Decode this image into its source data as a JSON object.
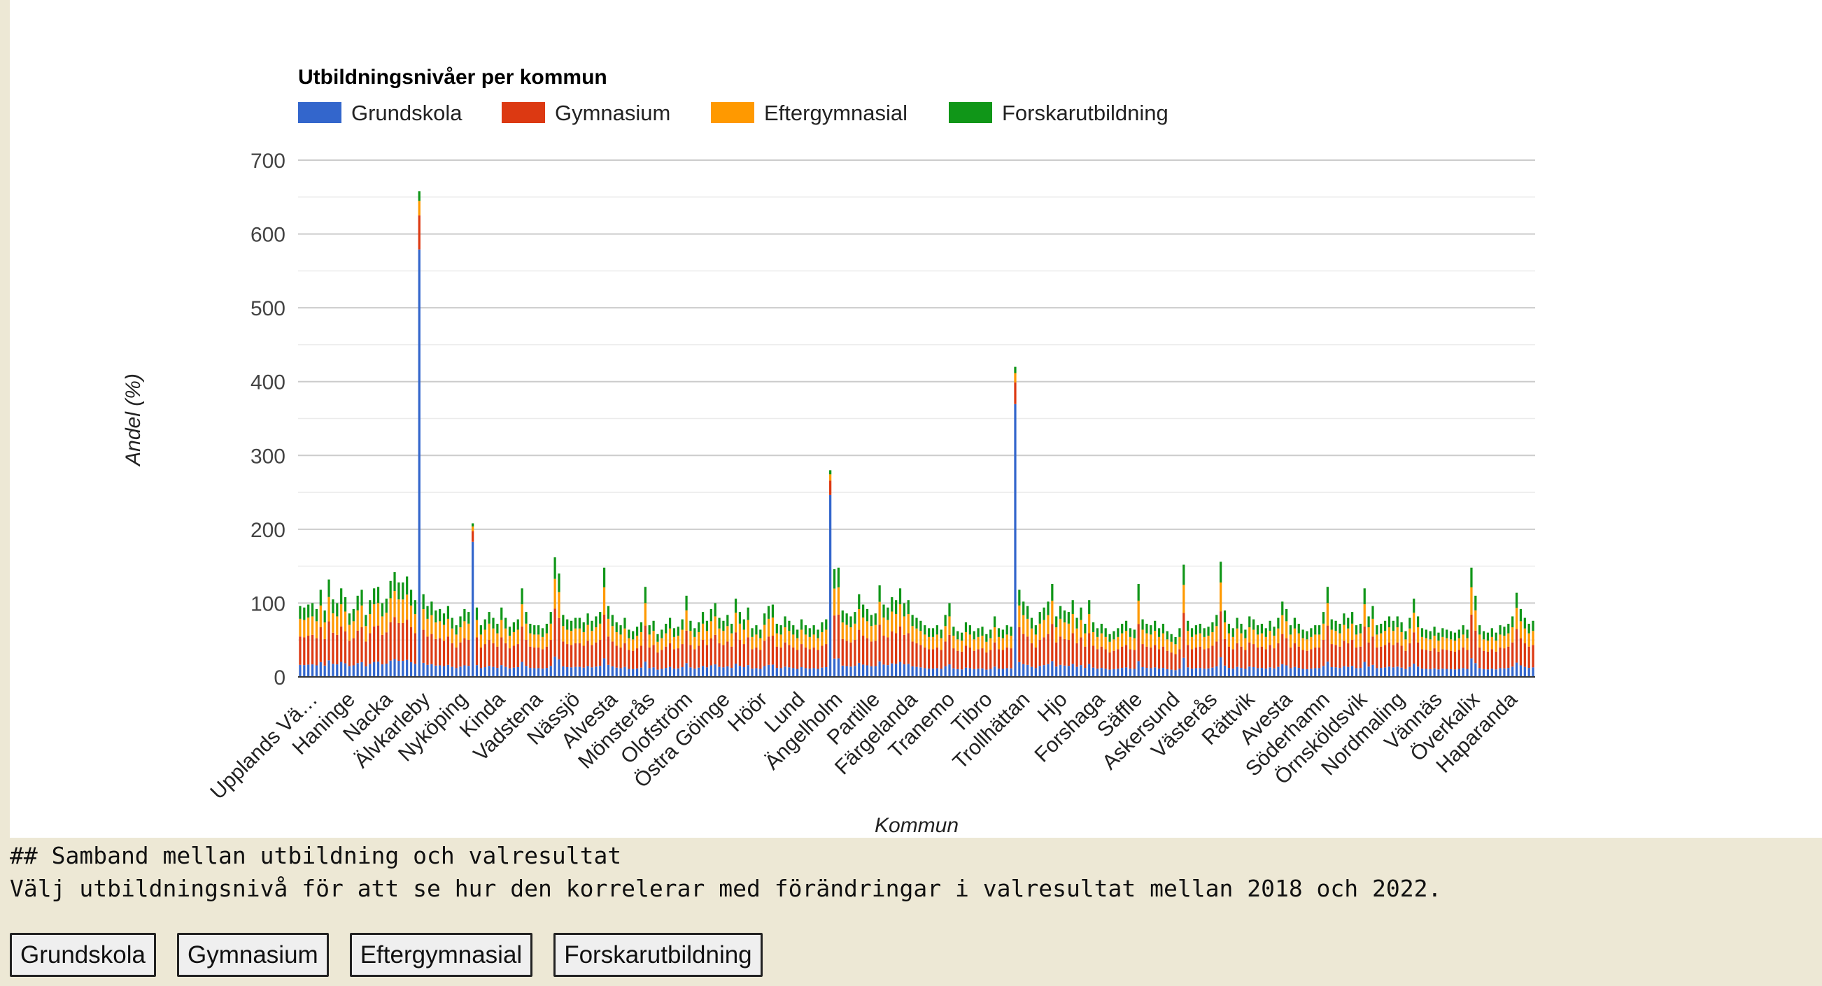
{
  "chart_data": {
    "type": "bar",
    "stacked": true,
    "title": "Utbildningsnivåer per kommun",
    "xlabel": "Kommun",
    "ylabel": "Andel (%)",
    "ylim": [
      0,
      700
    ],
    "yticks": [
      0,
      100,
      200,
      300,
      400,
      500,
      600,
      700
    ],
    "grid": true,
    "legend_position": "top-left",
    "series": [
      {
        "name": "Grundskola",
        "color": "#3366cc"
      },
      {
        "name": "Gymnasium",
        "color": "#dc3912"
      },
      {
        "name": "Eftergymnasial",
        "color": "#ff9900"
      },
      {
        "name": "Forskarutbildning",
        "color": "#109618"
      }
    ],
    "tick_labels": [
      "Upplands Vä…",
      "Haninge",
      "Nacka",
      "Älvkarleby",
      "Nyköping",
      "Kinda",
      "Vadstena",
      "Nässjö",
      "Alvesta",
      "Mönsterås",
      "Olofström",
      "Östra Göinge",
      "Höör",
      "Lund",
      "Ängelholm",
      "Partille",
      "Färgelanda",
      "Tranemo",
      "Tibro",
      "Trollhättan",
      "Hjo",
      "Forshaga",
      "Säffle",
      "Askersund",
      "Västerås",
      "Rättvik",
      "Avesta",
      "Söderhamn",
      "Örnsköldsvik",
      "Nordmaling",
      "Vännäs",
      "Överkalix",
      "Haparanda"
    ],
    "municipality_count": 290,
    "totals": [
      96,
      94,
      98,
      100,
      92,
      118,
      90,
      132,
      105,
      100,
      120,
      108,
      86,
      92,
      110,
      118,
      84,
      104,
      120,
      122,
      100,
      106,
      130,
      142,
      128,
      128,
      136,
      118,
      104,
      658,
      112,
      96,
      102,
      90,
      92,
      86,
      96,
      80,
      70,
      82,
      92,
      88,
      208,
      94,
      70,
      78,
      88,
      80,
      72,
      94,
      80,
      68,
      74,
      78,
      120,
      88,
      72,
      70,
      70,
      66,
      72,
      88,
      162,
      140,
      84,
      78,
      76,
      80,
      80,
      74,
      86,
      76,
      82,
      88,
      148,
      96,
      84,
      74,
      70,
      80,
      64,
      62,
      68,
      74,
      122,
      70,
      76,
      58,
      64,
      72,
      80,
      66,
      68,
      78,
      110,
      76,
      66,
      74,
      88,
      76,
      92,
      100,
      80,
      76,
      84,
      72,
      106,
      88,
      78,
      94,
      66,
      70,
      64,
      86,
      96,
      98,
      72,
      70,
      82,
      76,
      70,
      64,
      78,
      70,
      66,
      70,
      64,
      74,
      78,
      280,
      146,
      148,
      90,
      86,
      82,
      88,
      112,
      98,
      92,
      84,
      86,
      124,
      98,
      94,
      108,
      104,
      120,
      100,
      104,
      84,
      80,
      76,
      70,
      66,
      66,
      70,
      64,
      84,
      100,
      68,
      62,
      60,
      74,
      70,
      62,
      66,
      68,
      58,
      64,
      82,
      66,
      64,
      70,
      68,
      420,
      118,
      102,
      96,
      80,
      70,
      88,
      94,
      102,
      126,
      82,
      96,
      90,
      88,
      104,
      80,
      94,
      72,
      104,
      74,
      66,
      72,
      66,
      58,
      62,
      66,
      72,
      76,
      66,
      64,
      126,
      78,
      72,
      70,
      76,
      66,
      72,
      62,
      58,
      54,
      66,
      152,
      76,
      66,
      70,
      72,
      66,
      68,
      74,
      84,
      156,
      90,
      72,
      66,
      80,
      72,
      64,
      82,
      78,
      70,
      72,
      66,
      76,
      68,
      80,
      102,
      92,
      70,
      80,
      72,
      64,
      62,
      66,
      70,
      70,
      88,
      122,
      78,
      76,
      72,
      86,
      80,
      88,
      70,
      72,
      120,
      82,
      96,
      70,
      72,
      76,
      82,
      76,
      82,
      74,
      62,
      80,
      106,
      82,
      66,
      64,
      62,
      68,
      60,
      66,
      64,
      62,
      60,
      64,
      70,
      64,
      148,
      110,
      70,
      62,
      60,
      66,
      60,
      70,
      68,
      72,
      82,
      114,
      92,
      80,
      72,
      76
    ],
    "shares": [
      0.17,
      0.4,
      0.25,
      0.18
    ]
  },
  "notes": {
    "heading": "## Samband mellan utbildning och valresultat",
    "text": "Välj utbildningsnivå för att se hur den korrelerar med förändringar i valresultat mellan 2018 och 2022."
  },
  "buttons": [
    "Grundskola",
    "Gymnasium",
    "Eftergymnasial",
    "Forskarutbildning"
  ]
}
